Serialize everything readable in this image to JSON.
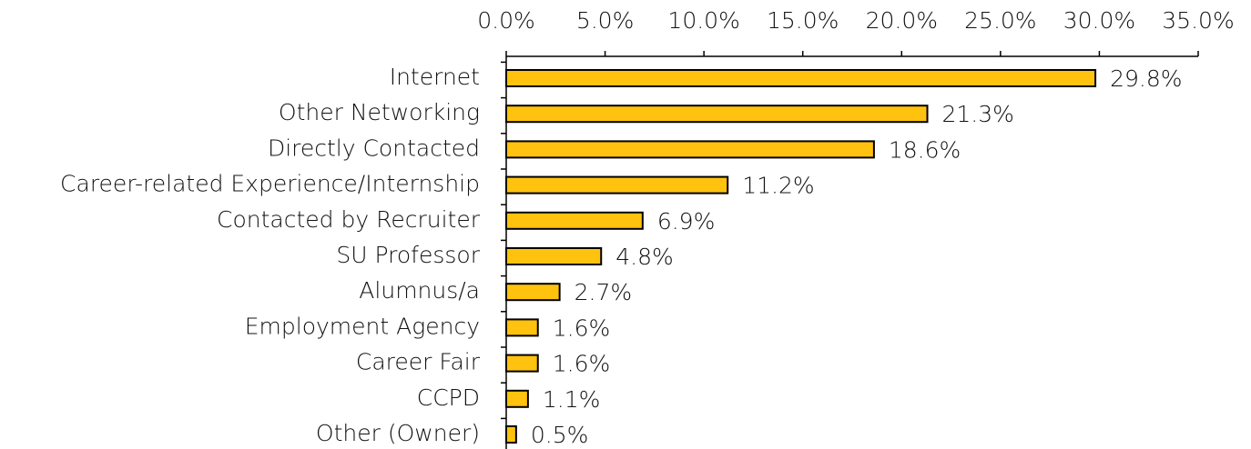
{
  "chart_data": {
    "type": "bar",
    "orientation": "horizontal",
    "categories": [
      "Internet",
      "Other Networking",
      "Directly Contacted",
      "Career-related Experience/Internship",
      "Contacted by Recruiter",
      "SU Professor",
      "Alumnus/a",
      "Employment Agency",
      "Career Fair",
      "CCPD",
      "Other (Owner)"
    ],
    "values": [
      29.8,
      21.3,
      18.6,
      11.2,
      6.9,
      4.8,
      2.7,
      1.6,
      1.6,
      1.1,
      0.5
    ],
    "value_labels": [
      "29.8%",
      "21.3%",
      "18.6%",
      "11.2%",
      "6.9%",
      "4.8%",
      "2.7%",
      "1.6%",
      "1.6%",
      "1.1%",
      "0.5%"
    ],
    "color": "#ffc20e",
    "xlim": [
      0,
      35
    ],
    "xticks": [
      {
        "value": 0,
        "label": "0.0%"
      },
      {
        "value": 5,
        "label": "5.0%"
      },
      {
        "value": 10,
        "label": "10.0%"
      },
      {
        "value": 15,
        "label": "15.0%"
      },
      {
        "value": 20,
        "label": "20.0%"
      },
      {
        "value": 25,
        "label": "25.0%"
      },
      {
        "value": 30,
        "label": "30.0%"
      },
      {
        "value": 35,
        "label": "35.0%"
      }
    ],
    "grid": false
  }
}
